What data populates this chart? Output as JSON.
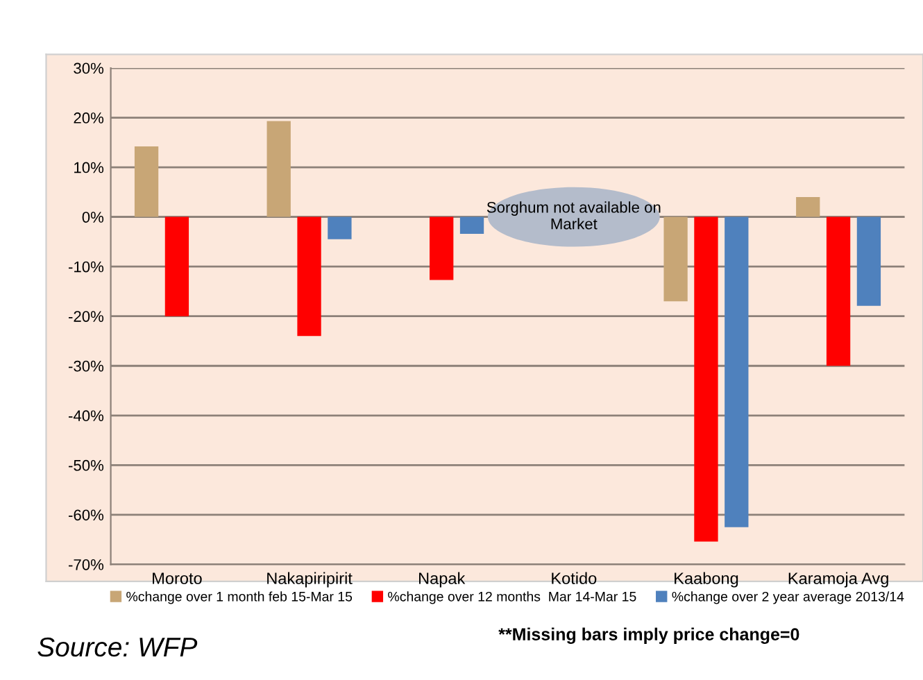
{
  "chart_data": {
    "type": "bar",
    "categories": [
      "Moroto",
      "Nakapiripirit",
      "Napak",
      "Kotido",
      "Kaabong",
      "Karamoja Avg"
    ],
    "series": [
      {
        "name": "%change over 1 month feb 15-Mar 15",
        "color": "#c8a676",
        "values": [
          14.2,
          19.3,
          0,
          null,
          -17,
          4
        ]
      },
      {
        "name": "%change over 12 months  Mar 14-Mar 15",
        "color": "#ff0000",
        "values": [
          -20,
          -24,
          -12.7,
          null,
          -65.4,
          -30
        ]
      },
      {
        "name": "%change over 2 year average 2013/14",
        "color": "#4f81bd",
        "values": [
          0,
          -4.5,
          -3.4,
          null,
          -62.5,
          -17.9
        ]
      }
    ],
    "ylim": [
      -70,
      30
    ],
    "yticks": [
      {
        "value": -70,
        "label": "-70%"
      },
      {
        "value": -60,
        "label": "-60%"
      },
      {
        "value": -50,
        "label": "-50%"
      },
      {
        "value": -40,
        "label": "-40%"
      },
      {
        "value": -30,
        "label": "-30%"
      },
      {
        "value": -20,
        "label": "-20%"
      },
      {
        "value": -10,
        "label": "-10%"
      },
      {
        "value": 0,
        "label": "0%"
      },
      {
        "value": 10,
        "label": "10%"
      },
      {
        "value": 20,
        "label": "20%"
      },
      {
        "value": 30,
        "label": "30%"
      }
    ],
    "grid": "y",
    "legend": "bottom",
    "annotations": [
      "Sorghum not available on Market",
      "Source: WFP",
      "**Missing bars imply price change=0"
    ]
  }
}
